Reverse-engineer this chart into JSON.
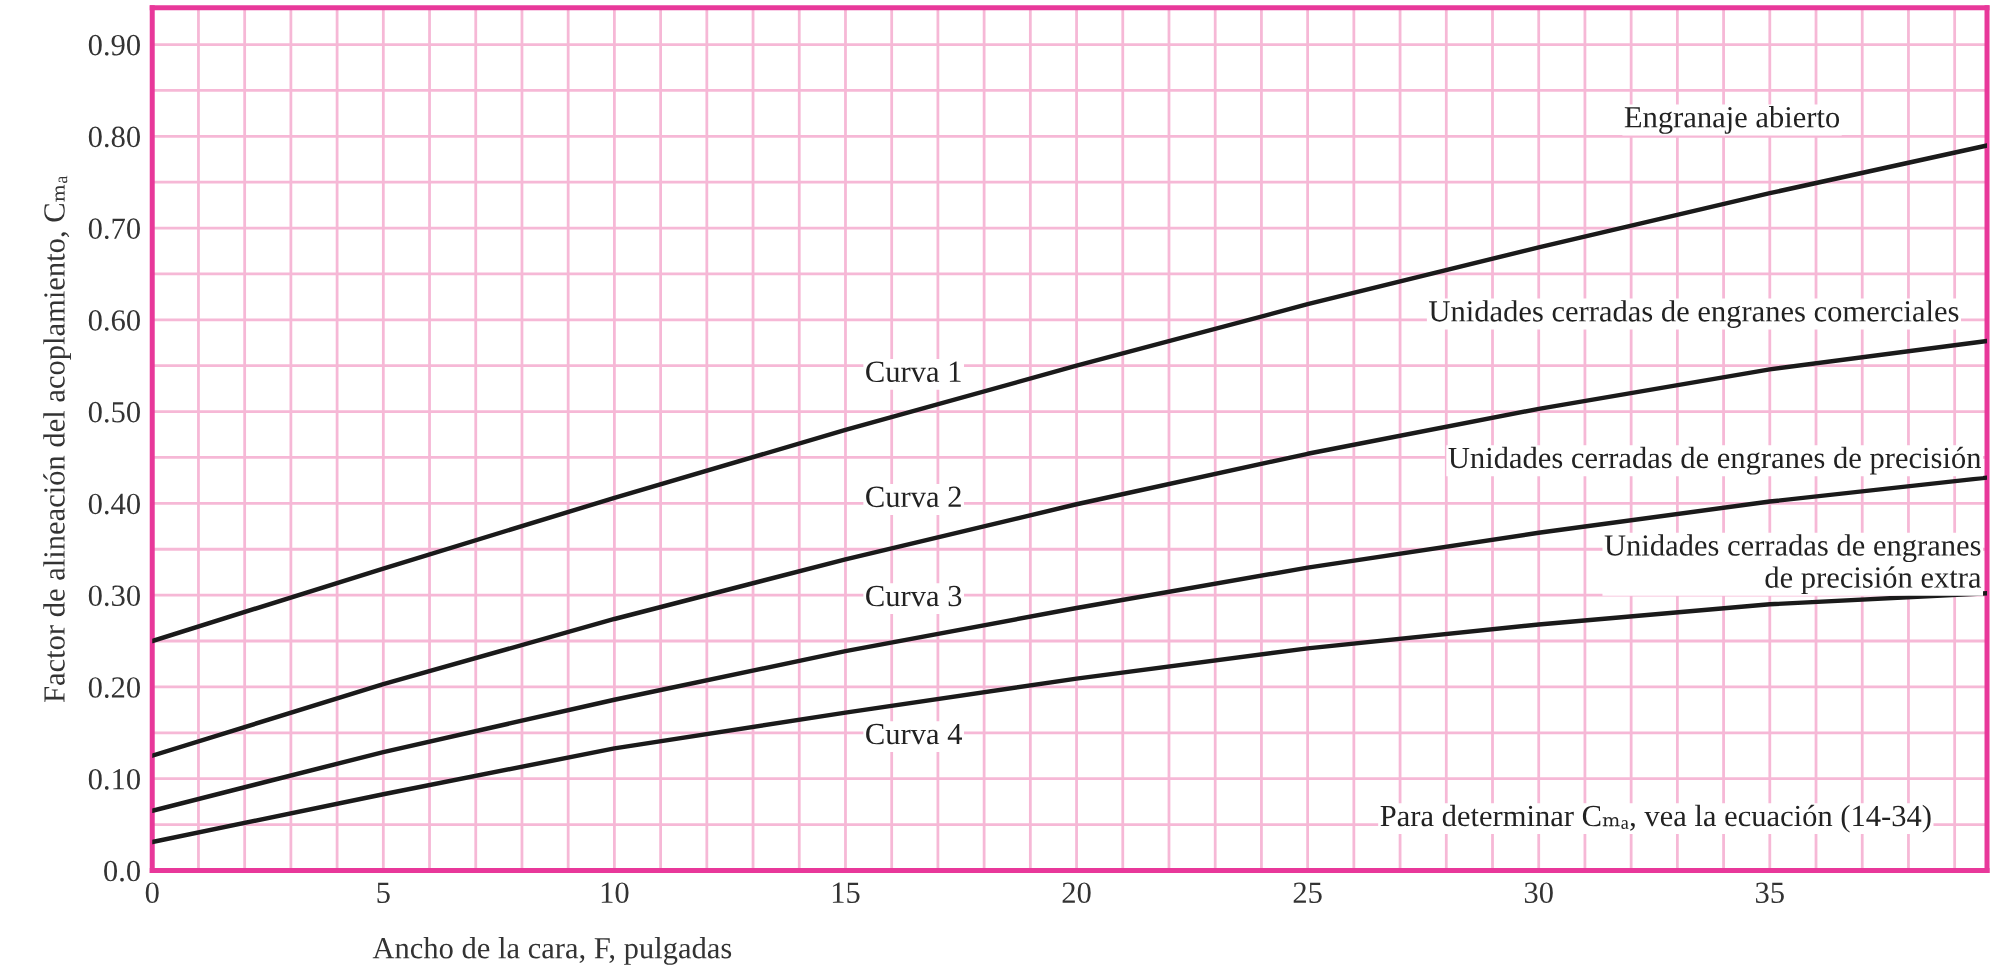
{
  "chart_data": {
    "type": "line",
    "xlabel": "Ancho de la cara, F, pulgadas",
    "ylabel": "Factor de alineación del acoplamiento, Cₘₐ",
    "x": [
      0,
      5,
      10,
      15,
      20,
      25,
      30,
      35,
      39.7
    ],
    "series": [
      {
        "color": "#1a1a1a",
        "values": [
          0.25,
          0.329,
          0.406,
          0.48,
          0.55,
          0.617,
          0.679,
          0.738,
          0.79
        ]
      },
      {
        "color": "#1a1a1a",
        "values": [
          0.125,
          0.203,
          0.274,
          0.339,
          0.399,
          0.454,
          0.503,
          0.546,
          0.577
        ]
      },
      {
        "color": "#1a1a1a",
        "values": [
          0.065,
          0.129,
          0.186,
          0.239,
          0.286,
          0.33,
          0.368,
          0.402,
          0.428
        ]
      },
      {
        "color": "#1a1a1a",
        "values": [
          0.031,
          0.083,
          0.133,
          0.172,
          0.209,
          0.242,
          0.268,
          0.29,
          0.302
        ]
      }
    ],
    "xlim": [
      0,
      39.7
    ],
    "ylim": [
      0,
      0.94
    ],
    "xticks": [
      0,
      {
        "value": 1,
        "label": null
      },
      {
        "value": 2,
        "label": null
      },
      {
        "value": 3,
        "label": null
      },
      {
        "value": 4,
        "label": null
      },
      5,
      {
        "value": 6,
        "label": null
      },
      {
        "value": 7,
        "label": null
      },
      {
        "value": 8,
        "label": null
      },
      {
        "value": 9,
        "label": null
      },
      10,
      {
        "value": 11,
        "label": null
      },
      {
        "value": 12,
        "label": null
      },
      {
        "value": 13,
        "label": null
      },
      {
        "value": 14,
        "label": null
      },
      15,
      {
        "value": 16,
        "label": null
      },
      {
        "value": 17,
        "label": null
      },
      {
        "value": 18,
        "label": null
      },
      {
        "value": 19,
        "label": null
      },
      20,
      {
        "value": 21,
        "label": null
      },
      {
        "value": 22,
        "label": null
      },
      {
        "value": 23,
        "label": null
      },
      {
        "value": 24,
        "label": null
      },
      25,
      {
        "value": 26,
        "label": null
      },
      {
        "value": 27,
        "label": null
      },
      {
        "value": 28,
        "label": null
      },
      {
        "value": 29,
        "label": null
      },
      30,
      {
        "value": 31,
        "label": null
      },
      {
        "value": 32,
        "label": null
      },
      {
        "value": 33,
        "label": null
      },
      {
        "value": 34,
        "label": null
      },
      35,
      {
        "value": 36,
        "label": null
      },
      {
        "value": 37,
        "label": null
      },
      {
        "value": 38,
        "label": null
      },
      {
        "value": 39,
        "label": null
      }
    ],
    "yticks": [
      {
        "value": 0,
        "label": "0.0"
      },
      {
        "value": 0.05,
        "label": null
      },
      {
        "value": 0.1,
        "label": "0.10"
      },
      {
        "value": 0.15,
        "label": null
      },
      {
        "value": 0.2,
        "label": "0.20"
      },
      {
        "value": 0.25,
        "label": null
      },
      {
        "value": 0.3,
        "label": "0.30"
      },
      {
        "value": 0.35,
        "label": null
      },
      {
        "value": 0.4,
        "label": "0.40"
      },
      {
        "value": 0.45,
        "label": null
      },
      {
        "value": 0.5,
        "label": "0.50"
      },
      {
        "value": 0.55,
        "label": null
      },
      {
        "value": 0.6,
        "label": "0.60"
      },
      {
        "value": 0.65,
        "label": null
      },
      {
        "value": 0.7,
        "label": "0.70"
      },
      {
        "value": 0.75,
        "label": null
      },
      {
        "value": 0.8,
        "label": "0.80"
      },
      {
        "value": 0.85,
        "label": null
      },
      {
        "value": 0.9,
        "label": "0.90"
      }
    ],
    "grid": true,
    "annotations": [
      "Curva 1",
      "Curva 2",
      "Curva 3",
      "Curva 4",
      "Engranaje abierto",
      "Unidades cerradas de engranes comerciales",
      "Unidades cerradas de engranes de precisión",
      "Unidades cerradas de engranes\nde precisión extra",
      "Para determinar Cₘₐ, vea la ecuación (14-34)"
    ]
  }
}
